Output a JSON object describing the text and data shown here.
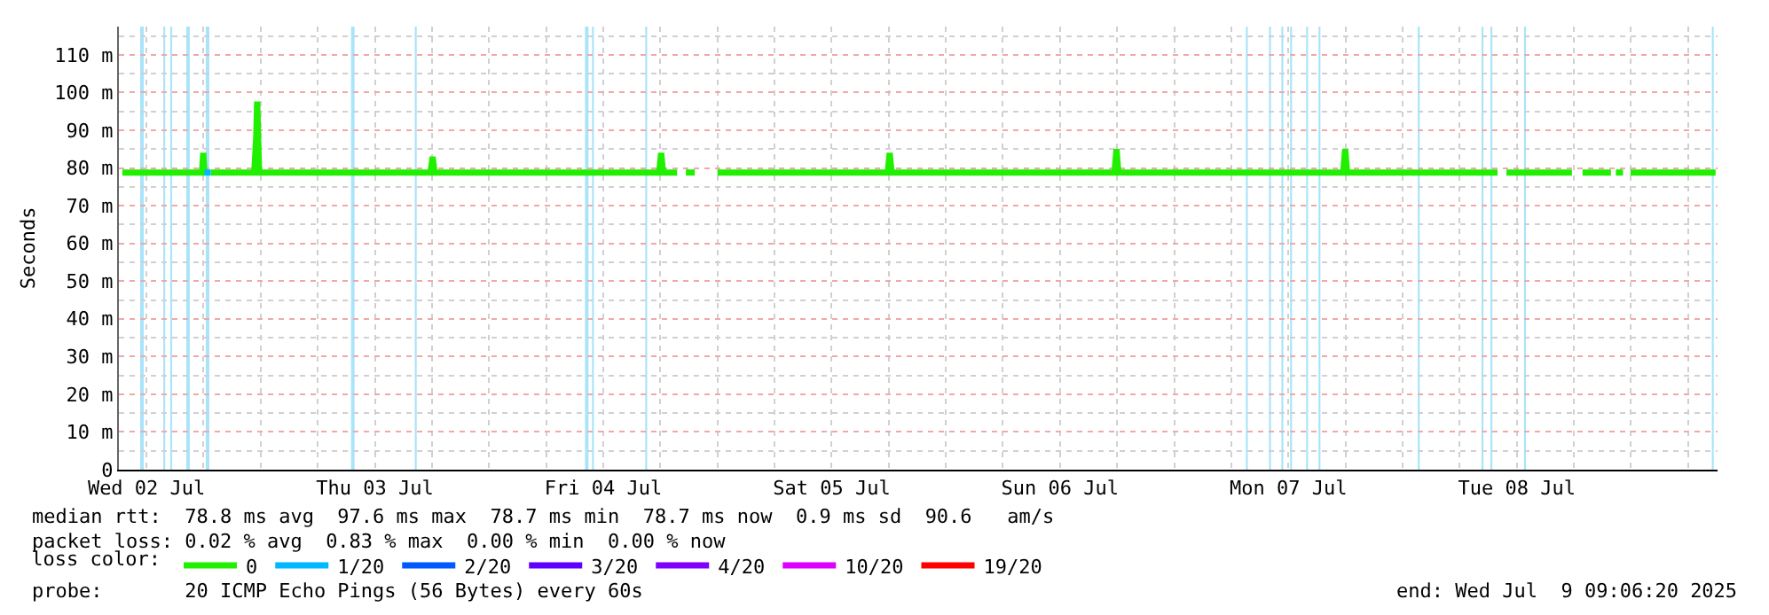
{
  "chart_data": {
    "type": "line",
    "ylabel": "Seconds",
    "legend_title": "loss color:",
    "legend": "bottom",
    "grid": true,
    "marker": "none",
    "line_style": "solid",
    "xlim": [
      "2025-07-02T09:06",
      "2025-07-09T09:06"
    ],
    "xticks": [
      {
        "value": "2025-07-02T12:00",
        "label": "Wed 02 Jul"
      },
      {
        "value": "2025-07-03T12:00",
        "label": "Thu 03 Jul"
      },
      {
        "value": "2025-07-04T12:00",
        "label": "Fri 04 Jul"
      },
      {
        "value": "2025-07-05T12:00",
        "label": "Sat 05 Jul"
      },
      {
        "value": "2025-07-06T12:00",
        "label": "Sun 06 Jul"
      },
      {
        "value": "2025-07-07T12:00",
        "label": "Mon 07 Jul"
      },
      {
        "value": "2025-07-08T12:00",
        "label": "Tue 08 Jul"
      }
    ],
    "ylim": [
      0,
      117.5
    ],
    "yticks": [
      0,
      {
        "value": 10,
        "label": "10 m"
      },
      {
        "value": 20,
        "label": "20 m"
      },
      {
        "value": 30,
        "label": "30 m"
      },
      {
        "value": 40,
        "label": "40 m"
      },
      {
        "value": 50,
        "label": "50 m"
      },
      {
        "value": 60,
        "label": "60 m"
      },
      {
        "value": 70,
        "label": "70 m"
      },
      {
        "value": 80,
        "label": "80 m"
      },
      {
        "value": 90,
        "label": "90 m"
      },
      {
        "value": 100,
        "label": "100 m"
      },
      {
        "value": 110,
        "label": "110 m"
      }
    ],
    "series": [
      {
        "name": "0",
        "color": "#20f000",
        "x": [
          "2025-07-02T09:28",
          "2025-07-02T17:50",
          "2025-07-02T17:58",
          "2025-07-02T18:05",
          "2025-07-02T18:25",
          "2025-07-02T18:45",
          "2025-07-02T23:20",
          "2025-07-02T23:32",
          "2025-07-02T23:38",
          "2025-07-02T23:50",
          "2025-07-03T17:52",
          "2025-07-03T18:04",
          "2025-07-03T18:16",
          "2025-07-04T17:53",
          "2025-07-04T18:05",
          "2025-07-04T18:17",
          "2025-07-04T19:46",
          "2025-07-04T20:10",
          "2025-07-04T20:41",
          "2025-07-04T21:37",
          "2025-07-04T22:40",
          "2025-07-05T00:00",
          "2025-07-05T17:54",
          "2025-07-05T18:06",
          "2025-07-05T18:18",
          "2025-07-06T17:44",
          "2025-07-06T17:56",
          "2025-07-06T18:08",
          "2025-07-07T17:46",
          "2025-07-07T17:58",
          "2025-07-07T18:10",
          "2025-07-08T09:59",
          "2025-07-08T10:25",
          "2025-07-08T10:55",
          "2025-07-08T17:48",
          "2025-07-08T18:20",
          "2025-07-08T18:55",
          "2025-07-08T21:54",
          "2025-07-08T22:15",
          "2025-07-08T22:25",
          "2025-07-08T23:10",
          "2025-07-08T23:30",
          "2025-07-08T23:57",
          "2025-07-09T08:54"
        ],
        "values": [
          78.8,
          78.8,
          84,
          78.8,
          null,
          78.8,
          78.8,
          88,
          97.6,
          78.8,
          78.8,
          83,
          78.8,
          78.8,
          84,
          78.8,
          78.8,
          null,
          78.8,
          78.8,
          null,
          78.8,
          78.8,
          84,
          78.8,
          78.8,
          85,
          78.8,
          78.8,
          85,
          78.8,
          78.8,
          null,
          78.8,
          78.8,
          null,
          78.8,
          78.8,
          null,
          78.8,
          78.8,
          null,
          78.8,
          78.8
        ]
      },
      {
        "name": "1/20",
        "color": "#00b8ff",
        "x": [
          "2025-07-02T18:05",
          "2025-07-02T18:45"
        ],
        "values": [
          78.8,
          78.8
        ]
      },
      {
        "name": "2/20",
        "color": "#0059ff",
        "values": [
          null
        ]
      },
      {
        "name": "3/20",
        "color": "#5e00ff",
        "values": [
          null
        ]
      },
      {
        "name": "4/20",
        "color": "#7e00ff",
        "values": [
          null
        ]
      },
      {
        "name": "10/20",
        "color": "#dd00ff",
        "values": [
          null
        ]
      },
      {
        "name": "19/20",
        "color": "#ff0000",
        "values": [
          null
        ]
      }
    ],
    "bands": [
      {
        "axis": "x",
        "from": "2025-07-02T11:20",
        "to": "2025-07-02T11:43",
        "color": "#a8e4fa"
      },
      {
        "axis": "x",
        "from": "2025-07-02T13:46",
        "to": "2025-07-02T13:58",
        "color": "#a8e4fa"
      },
      {
        "axis": "x",
        "from": "2025-07-02T14:30",
        "to": "2025-07-02T14:42",
        "color": "#a8e4fa"
      },
      {
        "axis": "x",
        "from": "2025-07-02T16:11",
        "to": "2025-07-02T16:33",
        "color": "#a8e4fa"
      },
      {
        "axis": "x",
        "from": "2025-07-02T18:14",
        "to": "2025-07-02T18:36",
        "color": "#a8e4fa"
      },
      {
        "axis": "x",
        "from": "2025-07-03T09:30",
        "to": "2025-07-03T09:52",
        "color": "#a8e4fa"
      },
      {
        "axis": "x",
        "from": "2025-07-03T16:12",
        "to": "2025-07-03T16:24",
        "color": "#a8e4fa"
      },
      {
        "axis": "x",
        "from": "2025-07-04T10:05",
        "to": "2025-07-04T10:27",
        "color": "#a8e4fa"
      },
      {
        "axis": "x",
        "from": "2025-07-04T10:49",
        "to": "2025-07-04T11:01",
        "color": "#a8e4fa"
      },
      {
        "axis": "x",
        "from": "2025-07-04T16:25",
        "to": "2025-07-04T16:37",
        "color": "#a8e4fa"
      },
      {
        "axis": "x",
        "from": "2025-07-07T07:32",
        "to": "2025-07-07T07:44",
        "color": "#a8e4fa"
      },
      {
        "axis": "x",
        "from": "2025-07-07T09:58",
        "to": "2025-07-07T10:10",
        "color": "#a8e4fa"
      },
      {
        "axis": "x",
        "from": "2025-07-07T11:16",
        "to": "2025-07-07T11:28",
        "color": "#a8e4fa"
      },
      {
        "axis": "x",
        "from": "2025-07-07T12:11",
        "to": "2025-07-07T12:23",
        "color": "#a8e4fa"
      },
      {
        "axis": "x",
        "from": "2025-07-07T13:52",
        "to": "2025-07-07T14:04",
        "color": "#a8e4fa"
      },
      {
        "axis": "x",
        "from": "2025-07-07T15:10",
        "to": "2025-07-07T15:22",
        "color": "#a8e4fa"
      },
      {
        "axis": "x",
        "from": "2025-07-08T01:36",
        "to": "2025-07-08T01:48",
        "color": "#a8e4fa"
      },
      {
        "axis": "x",
        "from": "2025-07-08T08:18",
        "to": "2025-07-08T08:30",
        "color": "#a8e4fa"
      },
      {
        "axis": "x",
        "from": "2025-07-08T09:14",
        "to": "2025-07-08T09:26",
        "color": "#a8e4fa"
      },
      {
        "axis": "x",
        "from": "2025-07-08T12:46",
        "to": "2025-07-08T12:58",
        "color": "#a8e4fa"
      },
      {
        "axis": "x",
        "from": "2025-07-09T08:30",
        "to": "2025-07-09T08:42",
        "color": "#a8e4fa"
      }
    ],
    "annotations": [
      "median rtt:  78.8 ms avg  97.6 ms max  78.7 ms min  78.7 ms now  0.9 ms sd  90.6   am/s",
      "packet loss: 0.02 % avg  0.83 % max  0.00 % min  0.00 % now",
      "probe:       20 ICMP Echo Pings (56 Bytes) every 60s",
      "end: Wed Jul  9 09:06:20 2025"
    ]
  }
}
